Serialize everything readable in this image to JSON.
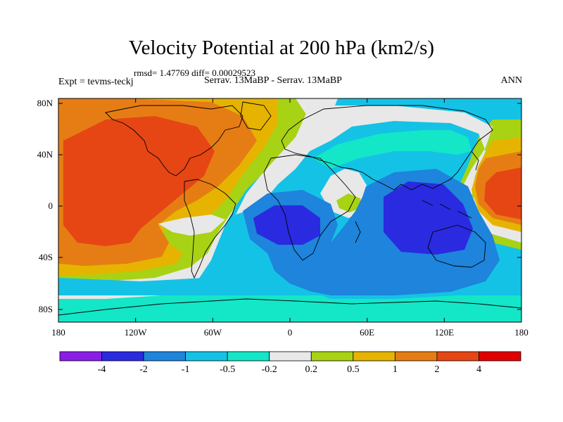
{
  "title": "Velocity Potential at 200 hPa (km2/s)",
  "stats": "rmsd= 1.47769 diff= 0.00029523",
  "expt": "Expt = tevms-teckj",
  "cases": "Serrav.  13MaBP - Serrav.  13MaBP",
  "season": "ANN",
  "lat_labels": [
    "80N",
    "40N",
    "0",
    "40S",
    "80S"
  ],
  "lon_labels": [
    "180",
    "120W",
    "60W",
    "0",
    "60E",
    "120E",
    "180"
  ],
  "colorbar": {
    "labels": [
      "-4",
      "-2",
      "-1",
      "-0.5",
      "-0.2",
      "0.2",
      "0.5",
      "1",
      "2",
      "4"
    ],
    "colors": [
      "#8a1ee6",
      "#2a2ae0",
      "#1e84dc",
      "#14c2e6",
      "#14e6c8",
      "#e8e8e8",
      "#a8d214",
      "#e6b400",
      "#e67d14",
      "#e64614",
      "#e00000"
    ]
  }
}
